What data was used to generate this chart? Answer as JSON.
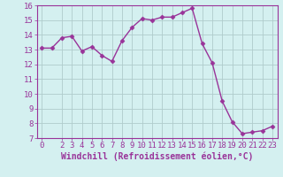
{
  "x": [
    0,
    1,
    2,
    3,
    4,
    5,
    6,
    7,
    8,
    9,
    10,
    11,
    12,
    13,
    14,
    15,
    16,
    17,
    18,
    19,
    20,
    21,
    22,
    23
  ],
  "y": [
    13.1,
    13.1,
    13.8,
    13.9,
    12.9,
    13.2,
    12.6,
    12.2,
    13.6,
    14.5,
    15.1,
    15.0,
    15.2,
    15.2,
    15.5,
    15.8,
    13.4,
    12.1,
    9.5,
    8.1,
    7.3,
    7.4,
    7.5,
    7.8
  ],
  "line_color": "#993399",
  "marker_color": "#993399",
  "bg_color": "#d4f0f0",
  "grid_color": "#b0cccc",
  "xlabel": "Windchill (Refroidissement éolien,°C)",
  "ylim": [
    7,
    16
  ],
  "xlim_min": -0.5,
  "xlim_max": 23.5,
  "yticks": [
    7,
    8,
    9,
    10,
    11,
    12,
    13,
    14,
    15,
    16
  ],
  "xticks": [
    0,
    2,
    3,
    4,
    5,
    6,
    7,
    8,
    9,
    10,
    11,
    12,
    13,
    14,
    15,
    16,
    17,
    18,
    19,
    20,
    21,
    22,
    23
  ],
  "font_color": "#993399",
  "tick_fontsize": 6.5,
  "xlabel_fontsize": 7,
  "linewidth": 1.0,
  "markersize": 2.5
}
